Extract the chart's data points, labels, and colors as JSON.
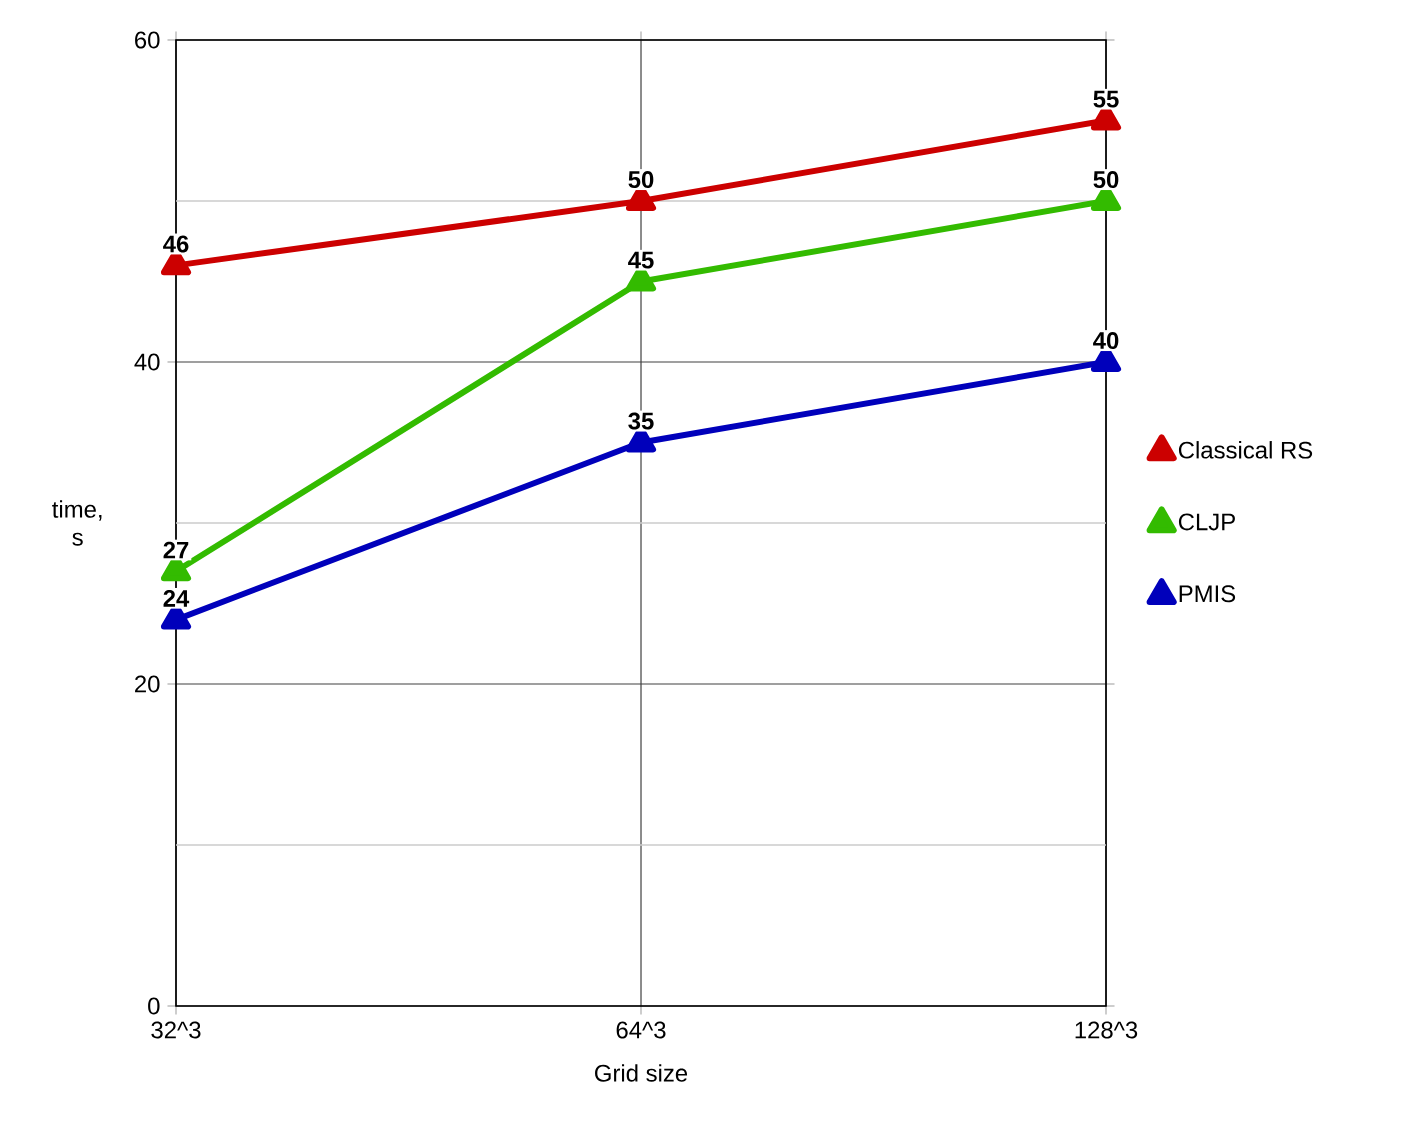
{
  "chart_data": {
    "type": "line",
    "xlabel": "Grid size",
    "ylabel": "time, s",
    "categories": [
      "32^3",
      "64^3",
      "128^3"
    ],
    "series": [
      {
        "name": "Classical RS",
        "color": "#cc0000",
        "values": [
          46,
          50,
          55
        ]
      },
      {
        "name": "CLJP",
        "color": "#33bb00",
        "values": [
          27,
          45,
          50
        ]
      },
      {
        "name": "PMIS",
        "color": "#0000bb",
        "values": [
          24,
          35,
          40
        ]
      }
    ],
    "ylim": [
      0,
      60
    ],
    "yticks": [
      0,
      {
        "value": 10,
        "label": null
      },
      20,
      {
        "value": 30,
        "label": null
      },
      40,
      {
        "value": 50,
        "label": null
      },
      60
    ],
    "grid": true,
    "legend": "right",
    "marker": "triangle",
    "line_style": "solid",
    "data_labels": true
  }
}
